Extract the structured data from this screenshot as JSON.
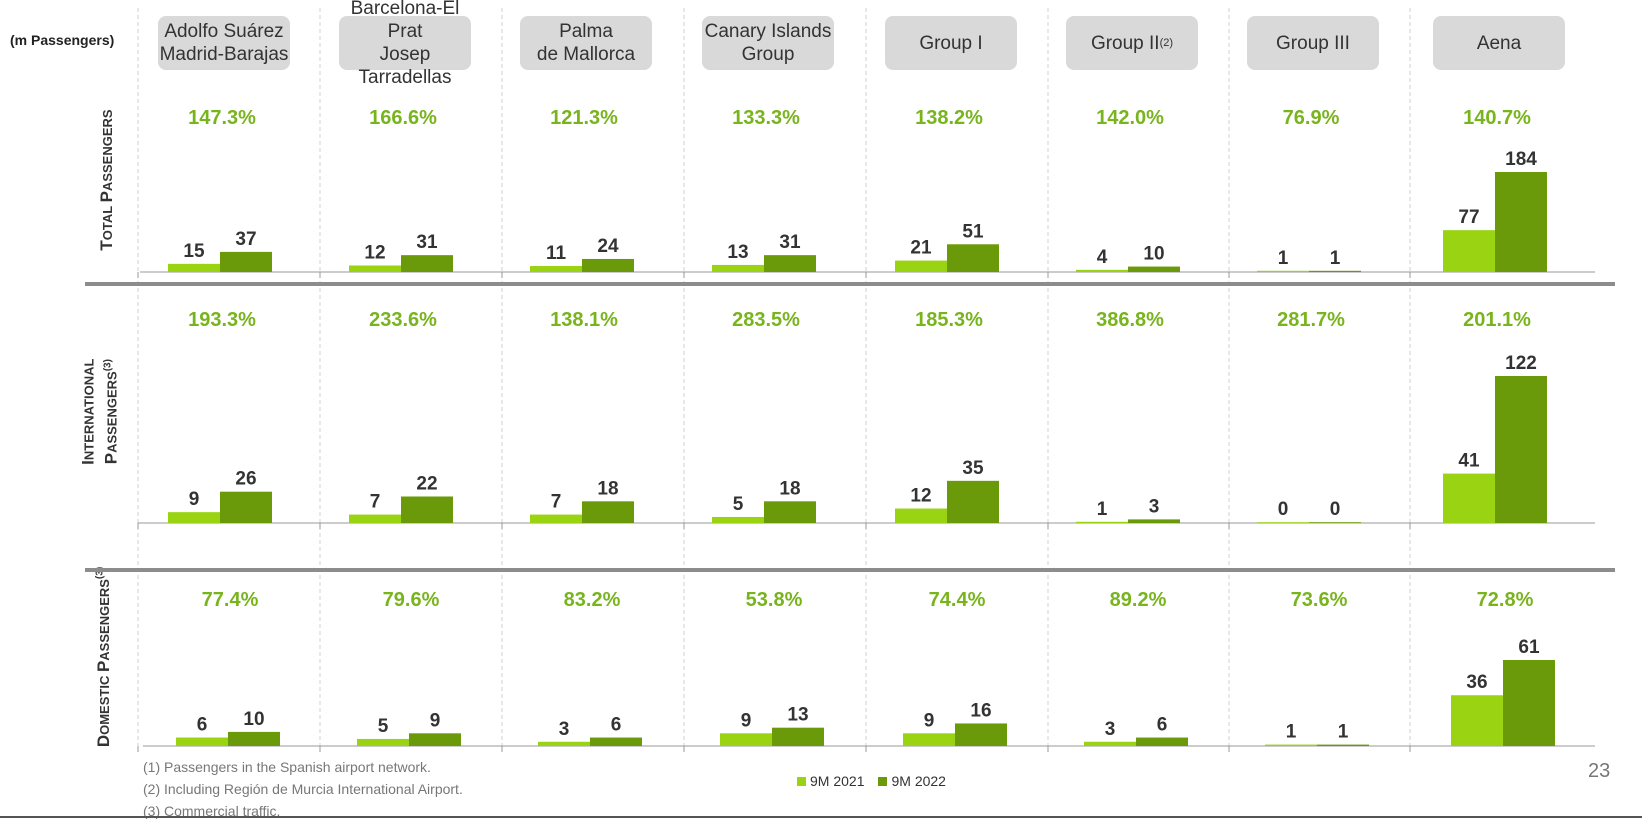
{
  "unit_label": "(m Passengers)",
  "columns": [
    "Adolfo Suárez\nMadrid-Barajas",
    "Barcelona-El Prat\nJosep Tarradellas",
    "Palma\nde Mallorca",
    "Canary Islands\nGroup",
    "Group I",
    "Group II",
    "Group III",
    "Aena"
  ],
  "column_note": "(2)",
  "row_labels": [
    {
      "first": "T",
      "rest": "OTAL ",
      "first2": "P",
      "rest2": "ASSENGERS",
      "note": ""
    },
    {
      "first": "I",
      "rest": "NTERNATIONAL",
      "first2": "P",
      "rest2": "ASSENGERS",
      "note": "(3)"
    },
    {
      "first": "D",
      "rest": "OMESTIC ",
      "first2": "P",
      "rest2": "ASSENGERS",
      "note": "(3)"
    }
  ],
  "colors": {
    "light": "#99d312",
    "dark": "#6a9a0a",
    "pct": "#78b41c",
    "sep": "#8c8c8c"
  },
  "chart_data": [
    {
      "type": "bar",
      "title": "Total Passengers",
      "categories": [
        "Adolfo Suárez Madrid-Barajas",
        "Barcelona-El Prat Josep Tarradellas",
        "Palma de Mallorca",
        "Canary Islands Group",
        "Group I",
        "Group II",
        "Group III",
        "Aena"
      ],
      "series": [
        {
          "name": "9M 2021",
          "values": [
            15,
            12,
            11,
            13,
            21,
            4,
            1,
            77
          ]
        },
        {
          "name": "9M 2022",
          "values": [
            37,
            31,
            24,
            31,
            51,
            10,
            1,
            184
          ]
        }
      ],
      "growth": [
        "147.3%",
        "166.6%",
        "121.3%",
        "133.3%",
        "138.2%",
        "142.0%",
        "76.9%",
        "140.7%"
      ],
      "ylim": [
        0,
        184
      ]
    },
    {
      "type": "bar",
      "title": "International Passengers",
      "categories": [
        "Adolfo Suárez Madrid-Barajas",
        "Barcelona-El Prat Josep Tarradellas",
        "Palma de Mallorca",
        "Canary Islands Group",
        "Group I",
        "Group II",
        "Group III",
        "Aena"
      ],
      "series": [
        {
          "name": "9M 2021",
          "values": [
            9,
            7,
            7,
            5,
            12,
            1,
            0,
            41
          ]
        },
        {
          "name": "9M 2022",
          "values": [
            26,
            22,
            18,
            18,
            35,
            3,
            0,
            122
          ]
        }
      ],
      "growth": [
        "193.3%",
        "233.6%",
        "138.1%",
        "283.5%",
        "185.3%",
        "386.8%",
        "281.7%",
        "201.1%"
      ],
      "ylim": [
        0,
        122
      ]
    },
    {
      "type": "bar",
      "title": "Domestic Passengers",
      "categories": [
        "Adolfo Suárez Madrid-Barajas",
        "Barcelona-El Prat Josep Tarradellas",
        "Palma de Mallorca",
        "Canary Islands Group",
        "Group I",
        "Group II",
        "Group III",
        "Aena"
      ],
      "series": [
        {
          "name": "9M 2021",
          "values": [
            6,
            5,
            3,
            9,
            9,
            3,
            1,
            36
          ]
        },
        {
          "name": "9M 2022",
          "values": [
            10,
            9,
            6,
            13,
            16,
            6,
            1,
            61
          ]
        }
      ],
      "growth": [
        "77.4%",
        "79.6%",
        "83.2%",
        "53.8%",
        "74.4%",
        "89.2%",
        "73.6%",
        "72.8%"
      ],
      "ylim": [
        0,
        61
      ]
    }
  ],
  "legend": [
    "9M 2021",
    "9M 2022"
  ],
  "footnotes": [
    "(1)  Passengers in the Spanish airport network.",
    "(2)  Including Región de Murcia International Airport.",
    "(3)  Commercial traffic."
  ],
  "page_number": "23"
}
